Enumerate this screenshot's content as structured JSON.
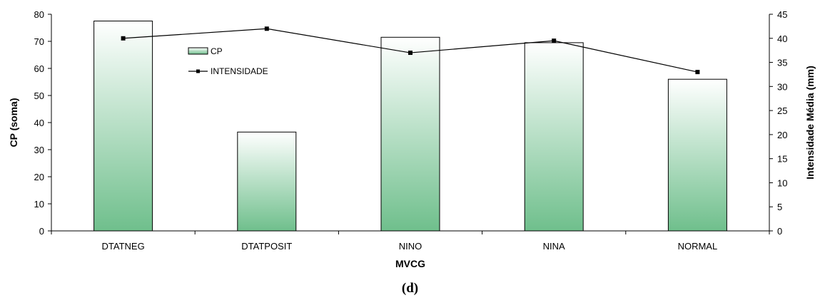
{
  "caption": "(d)",
  "chart_data": {
    "type": "bar",
    "categories": [
      "DTATNEG",
      "DTATPOSIT",
      "NINO",
      "NINA",
      "NORMAL"
    ],
    "series": [
      {
        "name": "CP",
        "type": "bar",
        "axis": "left",
        "values": [
          77.5,
          36.5,
          71.5,
          69.5,
          56
        ]
      },
      {
        "name": "INTENSIDADE",
        "type": "line",
        "axis": "right",
        "values": [
          40,
          42,
          37,
          39.5,
          33
        ]
      }
    ],
    "xlabel": "MVCG",
    "ylabel": "CP (soma)",
    "y2label": "Intensidade Média (mm)",
    "ylim": [
      0,
      80
    ],
    "y2lim": [
      0,
      45
    ],
    "yticks": [
      0,
      10,
      20,
      30,
      40,
      50,
      60,
      70,
      80
    ],
    "y2ticks": [
      0,
      5,
      10,
      15,
      20,
      25,
      30,
      35,
      40,
      45
    ],
    "legend": "top-left",
    "grid": false,
    "colors": {
      "bar_top": "#ffffff",
      "bar_bottom": "#6fbf8c",
      "line": "#000000"
    }
  }
}
